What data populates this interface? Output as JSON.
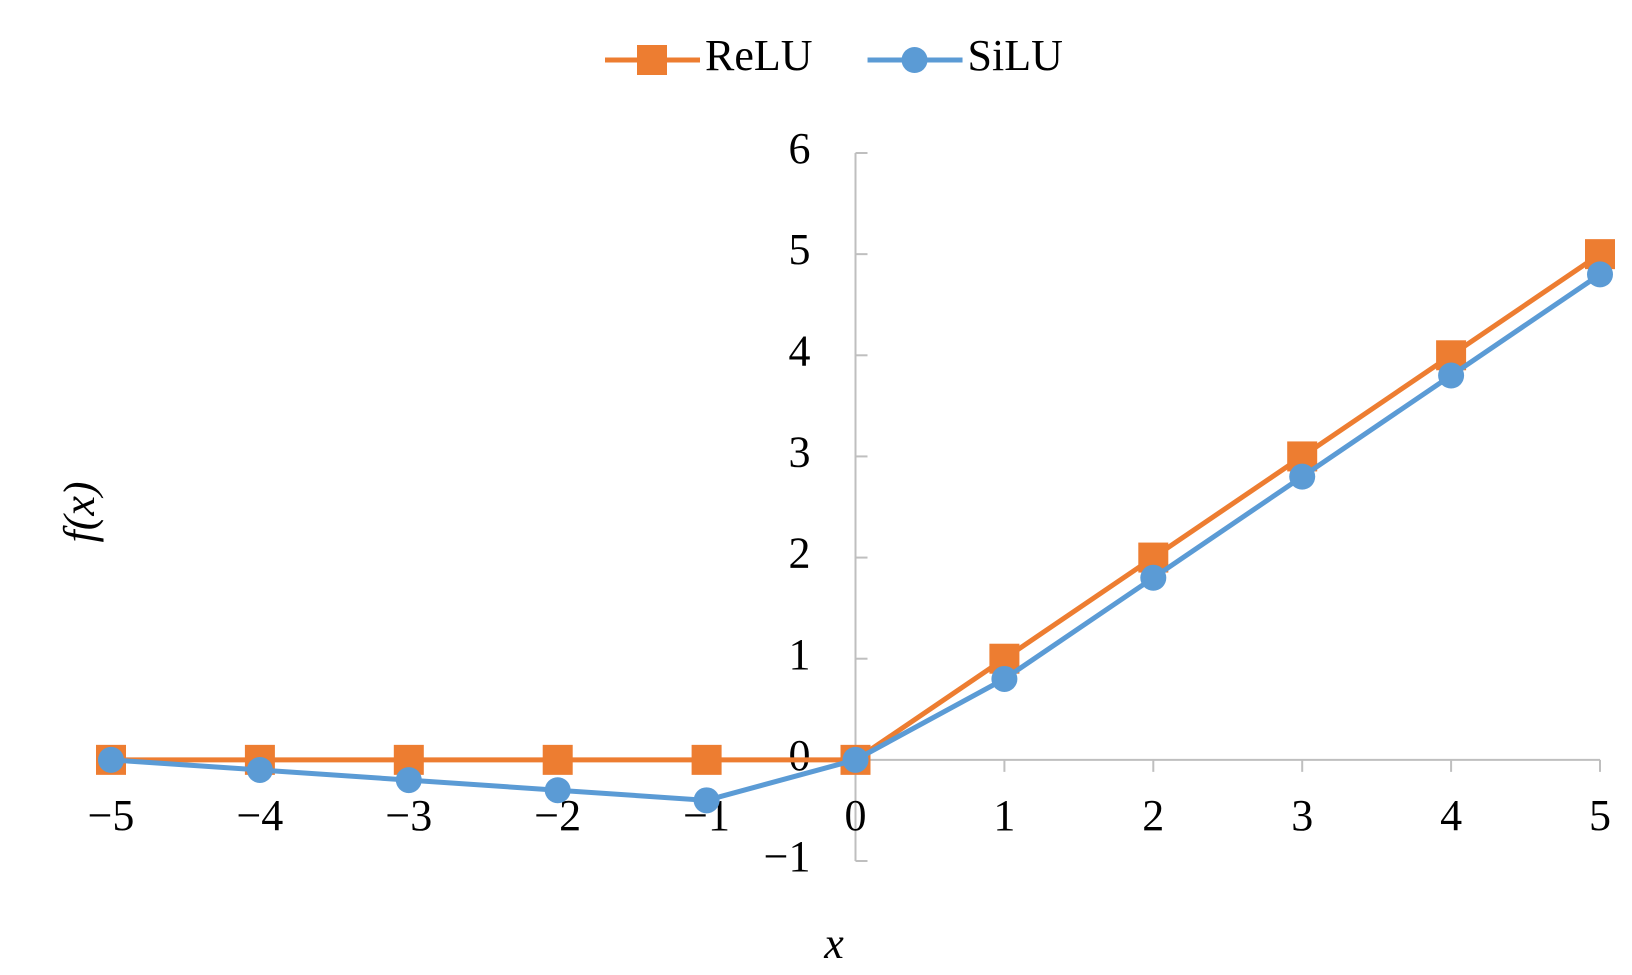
{
  "chart_data": {
    "type": "line",
    "x_label": "x",
    "y_label": "f(x)",
    "x": [
      -5,
      -4,
      -3,
      -2,
      -1,
      0,
      1,
      2,
      3,
      4,
      5
    ],
    "series": [
      {
        "name": "ReLU",
        "color": "#ed7d31",
        "marker": "square",
        "values": [
          0,
          0,
          0,
          0,
          0,
          0,
          1,
          2,
          3,
          4,
          5
        ]
      },
      {
        "name": "SiLU",
        "color": "#5b9bd5",
        "marker": "circle",
        "values": [
          0,
          -0.1,
          -0.2,
          -0.3,
          -0.4,
          0,
          0.8,
          1.8,
          2.8,
          3.8,
          4.8
        ]
      }
    ],
    "xlim": [
      -5,
      5
    ],
    "xticks": [
      {
        "value": -5,
        "label": "−5"
      },
      {
        "value": -4,
        "label": "−4"
      },
      {
        "value": -3,
        "label": "−3"
      },
      {
        "value": -2,
        "label": "−2"
      },
      {
        "value": -1,
        "label": "−1"
      },
      0,
      1,
      2,
      3,
      4,
      5
    ],
    "ylim": [
      -1,
      6
    ],
    "yticks": [
      {
        "value": -1,
        "label": "−1"
      },
      0,
      1,
      2,
      3,
      4,
      5,
      6
    ],
    "grid": false,
    "legend": "top"
  }
}
